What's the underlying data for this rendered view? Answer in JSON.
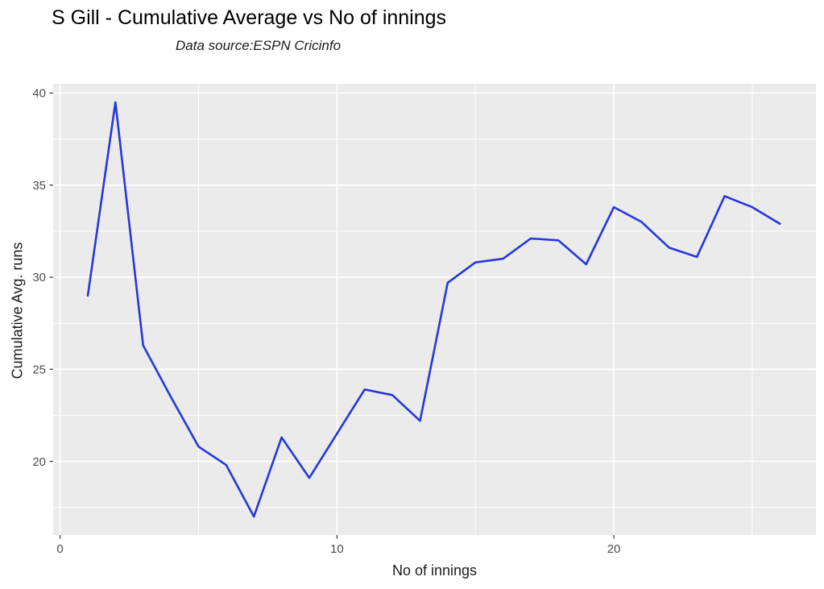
{
  "chart_data": {
    "type": "line",
    "title": "S Gill - Cumulative Average vs No of innings",
    "subtitle": "Data source:ESPN Cricinfo",
    "xlabel": "No of innings",
    "ylabel": "Cumulative Avg. runs",
    "x": [
      1,
      2,
      3,
      4,
      5,
      6,
      7,
      8,
      9,
      10,
      11,
      12,
      13,
      14,
      15,
      16,
      17,
      18,
      19,
      20,
      21,
      22,
      23,
      24,
      25,
      26
    ],
    "values": [
      29.0,
      39.5,
      26.3,
      23.5,
      20.8,
      19.8,
      17.0,
      21.3,
      19.1,
      21.5,
      23.9,
      23.6,
      22.2,
      29.7,
      30.8,
      31.0,
      32.1,
      32.0,
      30.7,
      33.8,
      33.0,
      31.6,
      31.1,
      34.4,
      33.8,
      32.9
    ],
    "series_name": "Cumulative average runs",
    "xlim": [
      -0.25,
      27.3
    ],
    "ylim": [
      16.0,
      40.5
    ],
    "x_ticks": {
      "major": [
        0,
        10,
        20
      ],
      "minor": [
        5,
        15,
        25
      ],
      "labels": [
        "0",
        "10",
        "20"
      ]
    },
    "y_ticks": {
      "major": [
        20,
        25,
        30,
        35,
        40
      ],
      "minor": [
        17.5,
        22.5,
        27.5,
        32.5,
        37.5
      ],
      "labels": [
        "20",
        "25",
        "30",
        "35",
        "40"
      ]
    },
    "grid": true,
    "legend_position": "none",
    "colors": {
      "line": "#2438DC",
      "panel_bg": "#EBEBEB",
      "grid": "#FFFFFF",
      "tick_label": "#4D4D4D",
      "tick_mark": "#333333",
      "axis_title": "#1A1A1A",
      "title": "#000000"
    }
  }
}
